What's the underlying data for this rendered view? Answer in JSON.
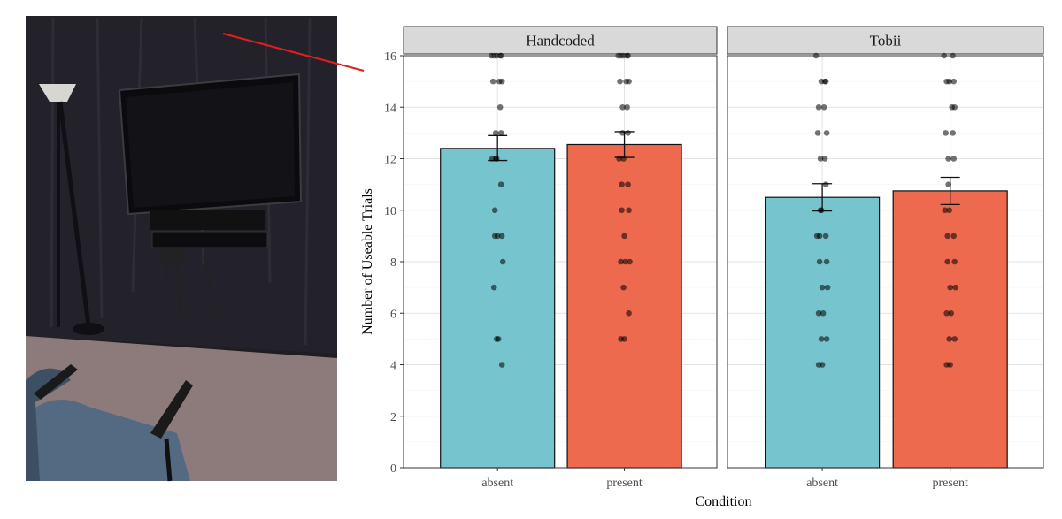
{
  "chart_data": {
    "type": "bar",
    "xlabel": "Condition",
    "ylabel": "Number of Useable Trials",
    "ylim": [
      0,
      16
    ],
    "yticks": [
      0,
      2,
      4,
      6,
      8,
      10,
      12,
      14,
      16
    ],
    "grid": true,
    "legend": "none",
    "categories": [
      "absent",
      "present"
    ],
    "colors": {
      "absent": "#76c5ce",
      "present": "#ee6a4f"
    },
    "panels": [
      {
        "facet": "Handcoded",
        "bars": [
          {
            "category": "absent",
            "mean": 12.4,
            "ci": [
              11.93,
              12.9
            ],
            "points": [
              16,
              16,
              16,
              16,
              16,
              15,
              15,
              15,
              14,
              13,
              13,
              12,
              12,
              12,
              11,
              10,
              9,
              9,
              9,
              8,
              7,
              5,
              5,
              4
            ]
          },
          {
            "category": "present",
            "mean": 12.55,
            "ci": [
              12.05,
              13.05
            ],
            "points": [
              16,
              16,
              16,
              16,
              16,
              15,
              15,
              15,
              14,
              14,
              13,
              13,
              12,
              12,
              11,
              11,
              10,
              10,
              9,
              8,
              8,
              8,
              7,
              6,
              5,
              5
            ]
          }
        ]
      },
      {
        "facet": "Tobii",
        "bars": [
          {
            "category": "absent",
            "mean": 10.5,
            "ci": [
              9.97,
              11.03
            ],
            "points": [
              16,
              15,
              15,
              15,
              14,
              14,
              13,
              13,
              12,
              12,
              11,
              10,
              10,
              9,
              9,
              9,
              8,
              8,
              7,
              7,
              6,
              6,
              5,
              5,
              4,
              4
            ]
          },
          {
            "category": "present",
            "mean": 10.75,
            "ci": [
              10.22,
              11.28
            ],
            "points": [
              16,
              16,
              15,
              15,
              15,
              14,
              14,
              13,
              13,
              12,
              12,
              11,
              10,
              10,
              9,
              9,
              8,
              8,
              7,
              7,
              6,
              6,
              5,
              5,
              4,
              4
            ]
          }
        ]
      }
    ]
  },
  "photo": {
    "elements": [
      "black-curtain",
      "tv-monitor",
      "floor-lamp",
      "chair",
      "carpet"
    ]
  }
}
